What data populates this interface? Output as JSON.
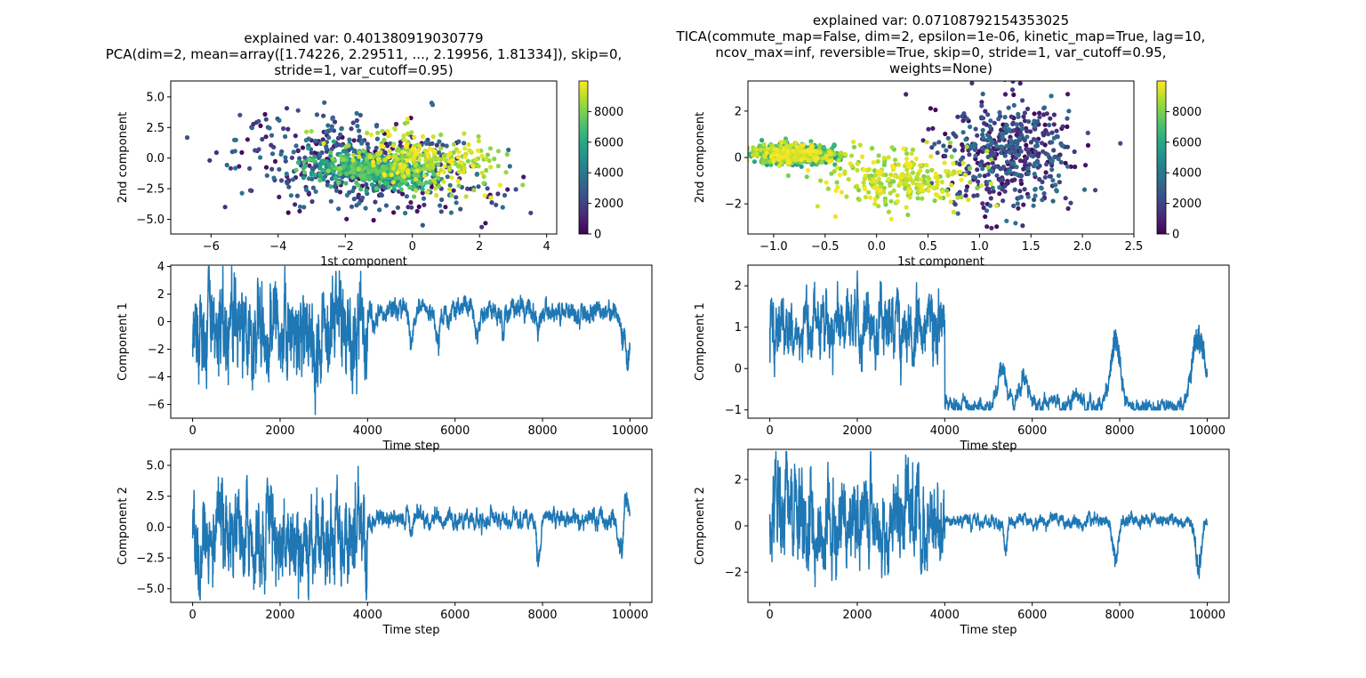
{
  "chart_data": [
    {
      "id": "pca-scatter",
      "type": "scatter",
      "title_lines": [
        "explained var: 0.401380919030779",
        "PCA(dim=2, mean=array([1.74226, 2.29511, ..., 2.19956, 1.81334]), skip=0,",
        "stride=1, var_cutoff=0.95)"
      ],
      "xlabel": "1st component",
      "ylabel": "2nd component",
      "xlim": [
        -7.2,
        4.3
      ],
      "ylim": [
        -6.2,
        6.3
      ],
      "xticks": [
        -6,
        -4,
        -2,
        0,
        2,
        4
      ],
      "yticks": [
        -5.0,
        -2.5,
        0.0,
        2.5,
        5.0
      ],
      "colorbar": {
        "range": [
          0,
          10000
        ],
        "ticks": [
          0,
          2000,
          4000,
          6000,
          8000
        ],
        "colormap": "viridis"
      },
      "clusters": [
        {
          "time_range": [
            0,
            4000
          ],
          "x_mean": -1.5,
          "x_sd": 1.8,
          "y_mean": -0.6,
          "y_sd": 1.9,
          "slope": -0.35
        },
        {
          "time_range": [
            4000,
            7800
          ],
          "x_mean": -1.2,
          "x_sd": 0.9,
          "y_mean": -1.0,
          "y_sd": 0.6,
          "slope": -0.3
        },
        {
          "time_range": [
            7800,
            10000
          ],
          "x_mean": 0.3,
          "x_sd": 1.1,
          "y_mean": -0.2,
          "y_sd": 1.1,
          "slope": -0.3
        }
      ]
    },
    {
      "id": "tica-scatter",
      "type": "scatter",
      "title_lines": [
        "explained var: 0.07108792154353025",
        "TICA(commute_map=False, dim=2, epsilon=1e-06, kinetic_map=True, lag=10,",
        "ncov_max=inf, reversible=True, skip=0, stride=1, var_cutoff=0.95,",
        "weights=None)"
      ],
      "xlabel": "1st component",
      "ylabel": "2nd component",
      "xlim": [
        -1.25,
        2.5
      ],
      "ylim": [
        -3.3,
        3.3
      ],
      "xticks": [
        -1.0,
        -0.5,
        0.0,
        0.5,
        1.0,
        1.5,
        2.0,
        2.5
      ],
      "yticks": [
        -2,
        0,
        2
      ],
      "colorbar": {
        "range": [
          0,
          10000
        ],
        "ticks": [
          0,
          2000,
          4000,
          6000,
          8000
        ],
        "colormap": "viridis"
      },
      "clusters": [
        {
          "time_range": [
            0,
            4000
          ],
          "x_mean": 1.3,
          "x_sd": 0.3,
          "y_mean": 0.2,
          "y_sd": 1.2,
          "slope": 0
        },
        {
          "time_range": [
            4000,
            10000
          ],
          "x_mean": -0.8,
          "x_sd": 0.2,
          "y_mean": 0.15,
          "y_sd": 0.2,
          "slope": 0
        },
        {
          "time_range": [
            7800,
            10000
          ],
          "x_mean": 0.2,
          "x_sd": 0.35,
          "y_mean": -1.0,
          "y_sd": 0.6,
          "slope": 0
        }
      ]
    },
    {
      "id": "pca-comp1",
      "type": "line",
      "xlabel": "Time step",
      "ylabel": "Component 1",
      "xlim": [
        -500,
        10500
      ],
      "ylim": [
        -7.0,
        4.1
      ],
      "xticks": [
        0,
        2000,
        4000,
        6000,
        8000,
        10000
      ],
      "yticks": [
        -6,
        -4,
        -2,
        0,
        2,
        4
      ],
      "series_color": "#1f77b4",
      "segments": [
        {
          "range": [
            0,
            4000
          ],
          "level": -0.8,
          "noise": 2.0
        },
        {
          "range": [
            4000,
            10000
          ],
          "level": 0.8,
          "noise": 0.45
        }
      ],
      "excursions": [
        {
          "at": 5000,
          "depth": -2.5,
          "width": 60
        },
        {
          "at": 5600,
          "depth": -3.3,
          "width": 60
        },
        {
          "at": 6500,
          "depth": -2.0,
          "width": 60
        },
        {
          "at": 7100,
          "depth": -2.2,
          "width": 40
        },
        {
          "at": 7900,
          "depth": -1.3,
          "width": 80
        },
        {
          "at": 9850,
          "depth": -2.5,
          "width": 80
        },
        {
          "at": 9950,
          "depth": -3.8,
          "width": 60
        }
      ]
    },
    {
      "id": "tica-comp1",
      "type": "line",
      "xlabel": "Time step",
      "ylabel": "Component 1",
      "xlim": [
        -500,
        10500
      ],
      "ylim": [
        -1.2,
        2.5
      ],
      "xticks": [
        0,
        2000,
        4000,
        6000,
        8000,
        10000
      ],
      "yticks": [
        -1,
        0,
        1,
        2
      ],
      "series_color": "#1f77b4",
      "segments": [
        {
          "range": [
            0,
            4000
          ],
          "level": 1.0,
          "noise": 0.45
        },
        {
          "range": [
            4000,
            10000
          ],
          "level": -0.9,
          "noise": 0.1
        }
      ],
      "excursions": [
        {
          "at": 5300,
          "depth": 1.0,
          "width": 150
        },
        {
          "at": 5800,
          "depth": 0.7,
          "width": 150
        },
        {
          "at": 7000,
          "depth": 0.4,
          "width": 80
        },
        {
          "at": 7900,
          "depth": 1.9,
          "width": 150
        },
        {
          "at": 9800,
          "depth": 2.0,
          "width": 200
        }
      ]
    },
    {
      "id": "pca-comp2",
      "type": "line",
      "xlabel": "Time step",
      "ylabel": "Component 2",
      "xlim": [
        -500,
        10500
      ],
      "ylim": [
        -6.1,
        6.3
      ],
      "xticks": [
        0,
        2000,
        4000,
        6000,
        8000,
        10000
      ],
      "yticks": [
        -5.0,
        -2.5,
        0.0,
        2.5,
        5.0
      ],
      "series_color": "#1f77b4",
      "segments": [
        {
          "range": [
            0,
            4000
          ],
          "level": -0.6,
          "noise": 2.0
        },
        {
          "range": [
            4000,
            10000
          ],
          "level": 0.6,
          "noise": 0.4
        }
      ],
      "excursions": [
        {
          "at": 4100,
          "depth": -1.5,
          "width": 60
        },
        {
          "at": 5000,
          "depth": -1.8,
          "width": 50
        },
        {
          "at": 7900,
          "depth": -4.0,
          "width": 60
        },
        {
          "at": 9800,
          "depth": -3.5,
          "width": 80
        },
        {
          "at": 9900,
          "depth": 3.0,
          "width": 60
        }
      ]
    },
    {
      "id": "tica-comp2",
      "type": "line",
      "xlabel": "Time step",
      "ylabel": "Component 2",
      "xlim": [
        -500,
        10500
      ],
      "ylim": [
        -3.3,
        3.3
      ],
      "xticks": [
        0,
        2000,
        4000,
        6000,
        8000,
        10000
      ],
      "yticks": [
        -2,
        0,
        2
      ],
      "series_color": "#1f77b4",
      "segments": [
        {
          "range": [
            0,
            4000
          ],
          "level": 0.2,
          "noise": 1.2
        },
        {
          "range": [
            4000,
            10000
          ],
          "level": 0.2,
          "noise": 0.15
        }
      ],
      "excursions": [
        {
          "at": 5400,
          "depth": -1.6,
          "width": 50
        },
        {
          "at": 7900,
          "depth": -2.2,
          "width": 80
        },
        {
          "at": 9800,
          "depth": -2.3,
          "width": 100
        }
      ]
    }
  ]
}
